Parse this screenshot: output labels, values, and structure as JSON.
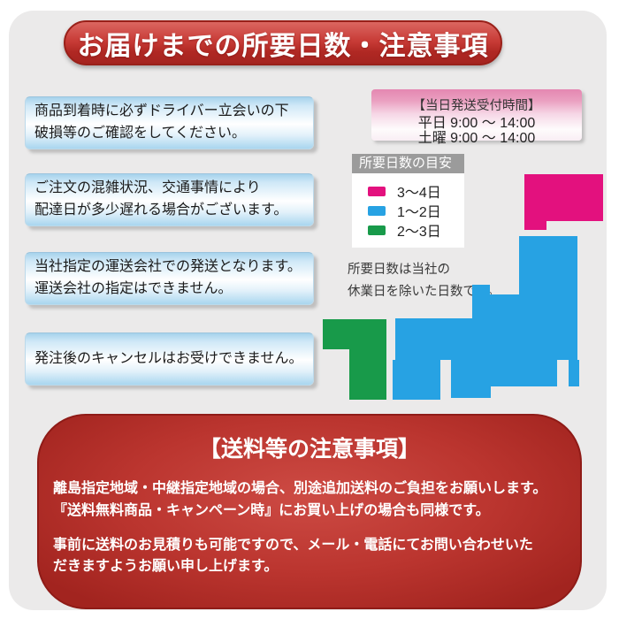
{
  "colors": {
    "days_3_4": "#e3117e",
    "days_1_2": "#27a2e3",
    "days_2_3": "#189a4a"
  },
  "title_banner": {
    "label": "お届けまでの所要日数・注意事項"
  },
  "notices": [
    {
      "line1": "商品到着時に必ずドライバー立会いの下",
      "line2": "破損等のご確認をしてください。"
    },
    {
      "line1": "ご注文の混雑状況、交通事情により",
      "line2": "配達日が多少遅れる場合がございます。"
    },
    {
      "line1": "当社指定の運送会社での発送となります。",
      "line2": "運送会社の指定はできません。"
    },
    {
      "line1": "発注後のキャンセルはお受けできません。",
      "line2": ""
    }
  ],
  "same_day_box": {
    "title": "【当日発送受付時間】",
    "weekday_hours": "平日 9:00 ～ 14:00",
    "saturday_hours": "土曜 9:00 ～ 14:00"
  },
  "legend": {
    "header": "所要日数の目安",
    "items": [
      {
        "label": "3～4日",
        "color_key": "days_3_4"
      },
      {
        "label": "1～2日",
        "color_key": "days_1_2"
      },
      {
        "label": "2～3日",
        "color_key": "days_2_3"
      }
    ]
  },
  "legend_note": {
    "line1": "所要日数は当社の",
    "line2": "休業日を除いた日数です。"
  },
  "map_regions": [
    {
      "name": "hokkaido",
      "days": "3～4日"
    },
    {
      "name": "honshu",
      "days": "1～2日"
    },
    {
      "name": "shikoku",
      "days": "1～2日"
    },
    {
      "name": "kyushu",
      "days": "2～3日"
    }
  ],
  "shipping_notice": {
    "title": "【送料等の注意事項】",
    "para1_line1": "離島指定地域・中継指定地域の場合、別途追加送料のご負担をお願いします。",
    "para1_line2": "『送料無料商品・キャンペーン時』にお買い上げの場合も同様です。",
    "para2_line1": "事前に送料のお見積りも可能ですので、メール・電話にてお問い合わせいた",
    "para2_line2": "だきますようお願い申し上げます。"
  }
}
